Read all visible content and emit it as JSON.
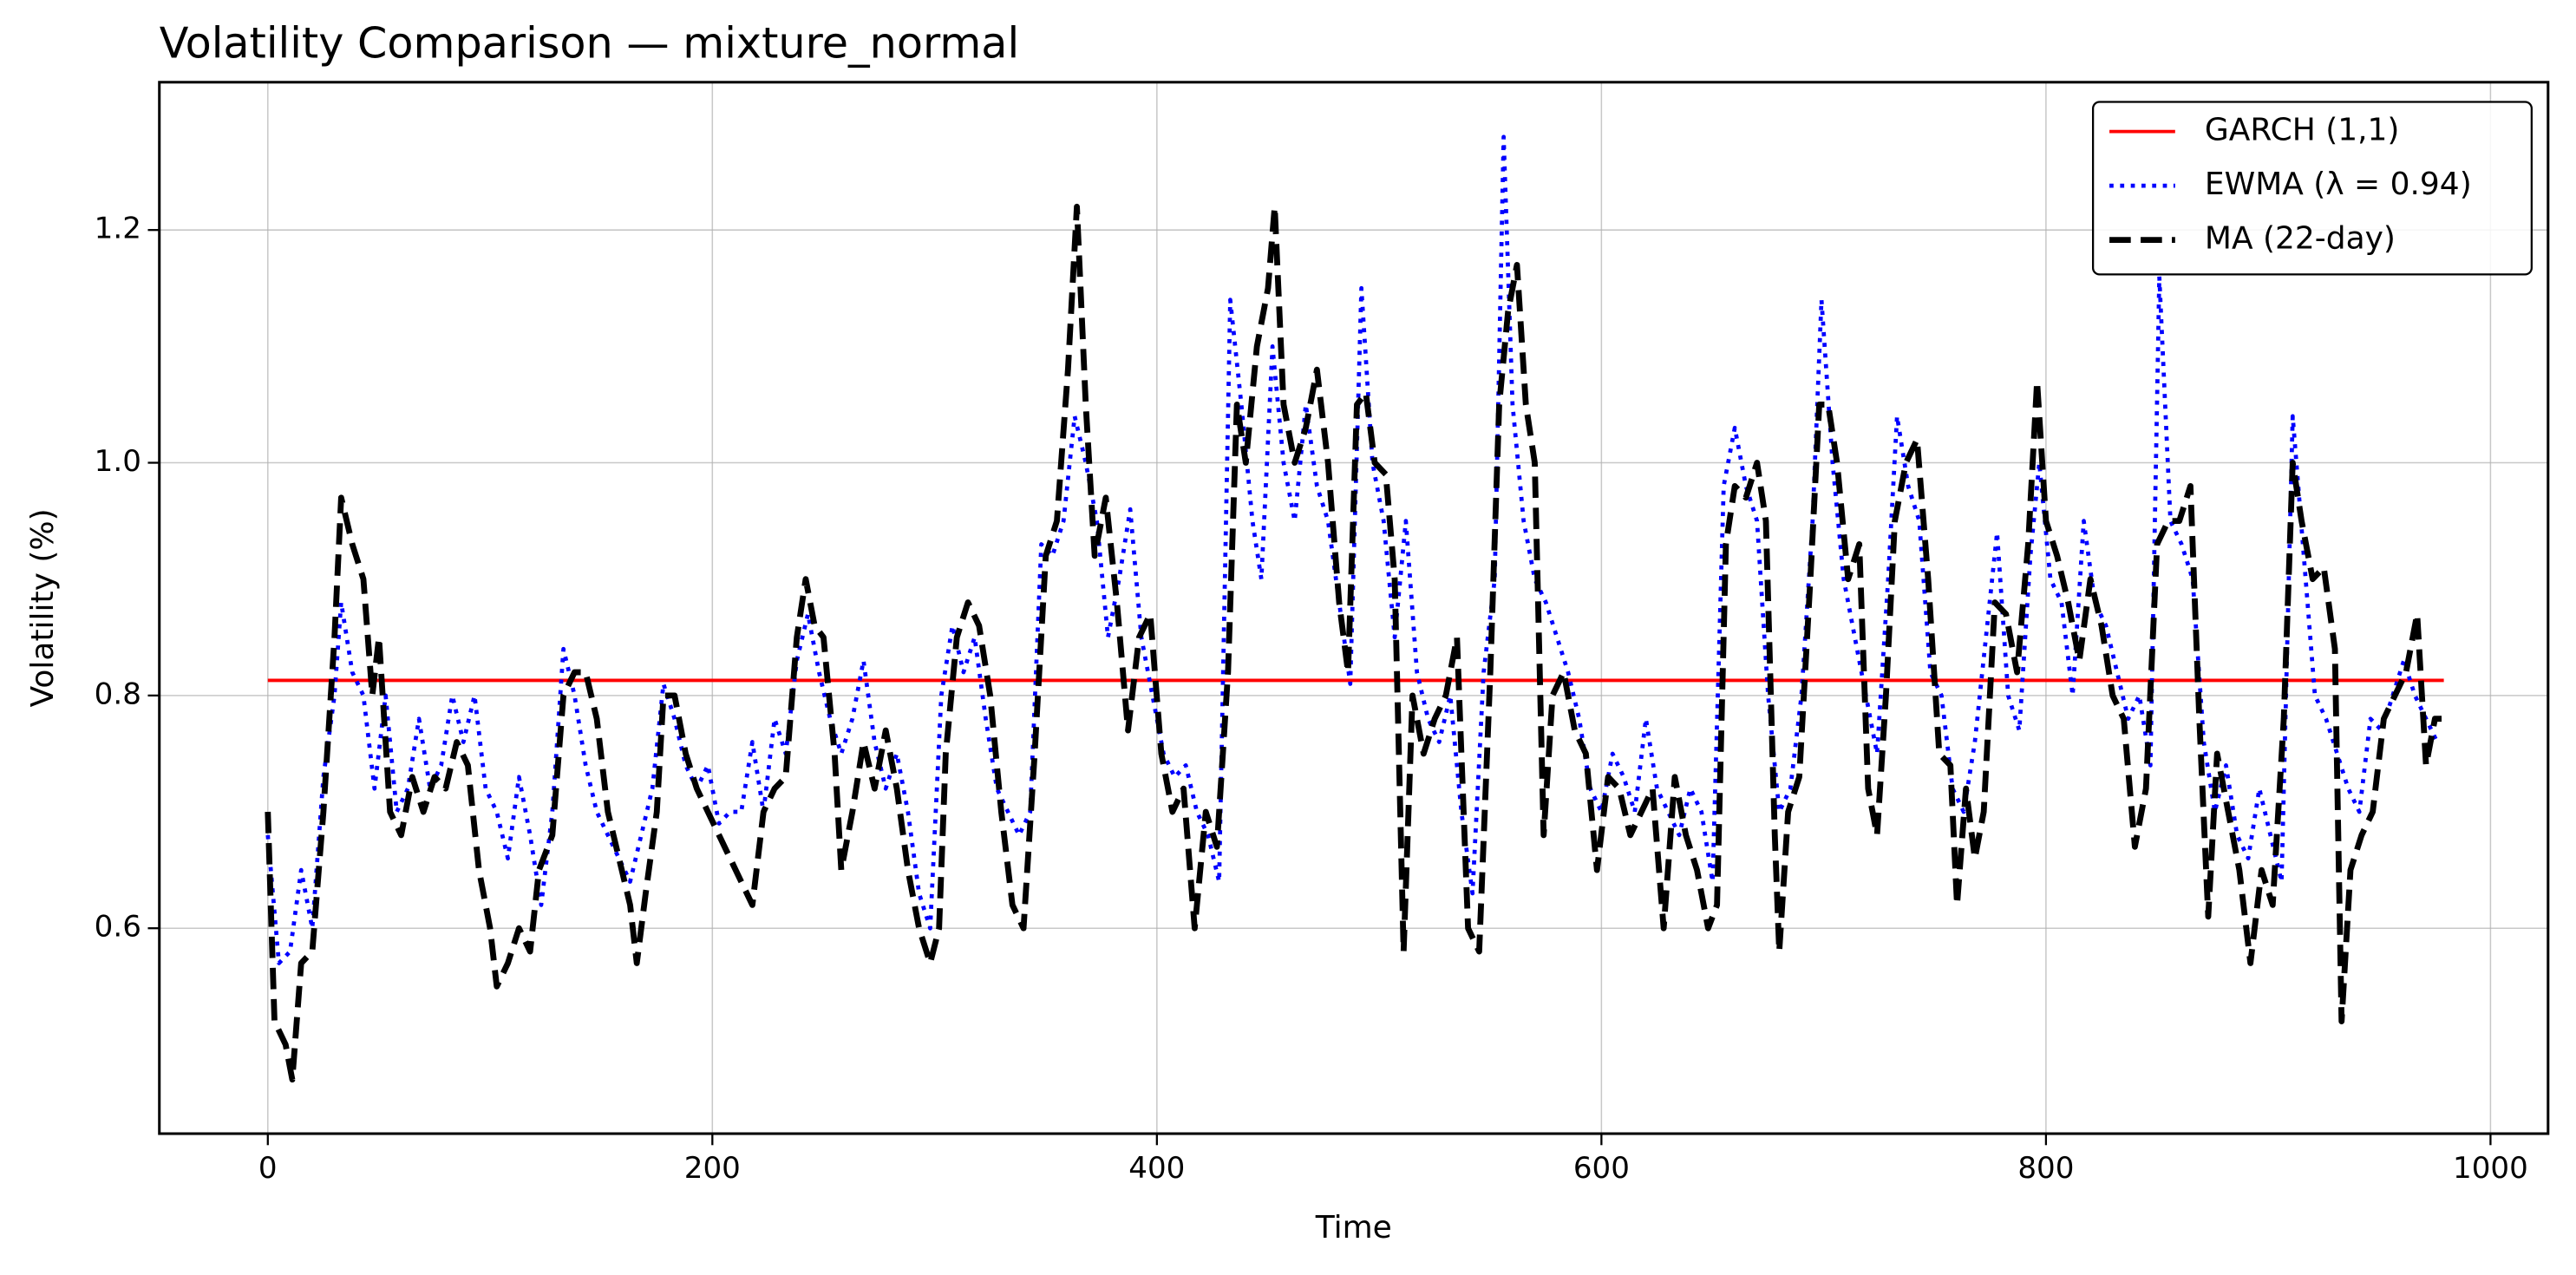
{
  "chart_data": {
    "type": "line",
    "title": "Volatility Comparison — mixture_normal",
    "xlabel": "Time",
    "ylabel": "Volatility (%)",
    "xlim": [
      -48.8,
      1025.9
    ],
    "ylim": [
      0.4235,
      1.327
    ],
    "xticks": [
      0,
      200,
      400,
      600,
      800,
      1000
    ],
    "yticks": [
      0.6,
      0.8,
      {
        "value": 1,
        "label": "1.0"
      },
      1.2
    ],
    "grid": true,
    "legend": "upper right",
    "series": [
      {
        "name": "GARCH (1,1)",
        "color": "#ff0000",
        "linestyle": "solid",
        "x": [
          0,
          979
        ],
        "values": [
          0.813,
          0.813
        ]
      },
      {
        "name": "EWMA (λ = 0.94)",
        "color": "#0000ff",
        "linestyle": "dotted",
        "x": [
          0,
          5,
          10,
          15,
          20,
          25,
          30,
          33,
          38,
          43,
          48,
          53,
          58,
          63,
          68,
          73,
          78,
          83,
          88,
          93,
          98,
          103,
          108,
          113,
          118,
          123,
          128,
          133,
          138,
          143,
          148,
          153,
          158,
          163,
          168,
          173,
          178,
          183,
          188,
          193,
          198,
          203,
          208,
          213,
          218,
          223,
          228,
          233,
          238,
          243,
          248,
          253,
          258,
          263,
          268,
          273,
          278,
          283,
          288,
          293,
          298,
          303,
          308,
          313,
          318,
          323,
          328,
          333,
          338,
          343,
          348,
          353,
          358,
          363,
          368,
          373,
          378,
          383,
          388,
          393,
          398,
          403,
          408,
          413,
          418,
          423,
          428,
          433,
          438,
          443,
          447,
          452,
          457,
          462,
          467,
          472,
          477,
          482,
          487,
          492,
          497,
          502,
          507,
          512,
          517,
          522,
          527,
          532,
          537,
          542,
          547,
          552,
          556,
          560,
          565,
          570,
          575,
          580,
          585,
          590,
          595,
          600,
          605,
          610,
          615,
          620,
          625,
          630,
          635,
          640,
          645,
          650,
          655,
          660,
          665,
          670,
          675,
          680,
          685,
          690,
          695,
          699,
          704,
          709,
          714,
          719,
          724,
          729,
          733,
          738,
          743,
          748,
          753,
          758,
          763,
          768,
          773,
          778,
          783,
          788,
          793,
          797,
          802,
          807,
          812,
          817,
          822,
          827,
          832,
          837,
          842,
          847,
          851,
          856,
          861,
          866,
          871,
          876,
          881,
          886,
          891,
          896,
          901,
          906,
          911,
          916,
          921,
          926,
          931,
          936,
          941,
          946,
          951,
          956,
          961,
          966,
          971,
          976
        ],
        "values": [
          0.68,
          0.57,
          0.58,
          0.65,
          0.6,
          0.73,
          0.8,
          0.88,
          0.82,
          0.8,
          0.72,
          0.8,
          0.7,
          0.72,
          0.78,
          0.72,
          0.74,
          0.8,
          0.76,
          0.8,
          0.72,
          0.7,
          0.66,
          0.73,
          0.68,
          0.62,
          0.7,
          0.84,
          0.8,
          0.74,
          0.7,
          0.68,
          0.66,
          0.64,
          0.68,
          0.72,
          0.81,
          0.78,
          0.74,
          0.72,
          0.74,
          0.69,
          0.7,
          0.7,
          0.76,
          0.7,
          0.78,
          0.75,
          0.83,
          0.87,
          0.82,
          0.78,
          0.75,
          0.78,
          0.83,
          0.76,
          0.72,
          0.75,
          0.7,
          0.63,
          0.6,
          0.8,
          0.86,
          0.82,
          0.85,
          0.78,
          0.72,
          0.7,
          0.68,
          0.7,
          0.93,
          0.92,
          0.95,
          1.04,
          1.0,
          0.95,
          0.85,
          0.9,
          0.96,
          0.85,
          0.8,
          0.75,
          0.73,
          0.74,
          0.7,
          0.68,
          0.64,
          1.14,
          1.05,
          0.95,
          0.9,
          1.1,
          1.0,
          0.95,
          1.05,
          0.98,
          0.95,
          0.88,
          0.81,
          1.15,
          1.0,
          0.95,
          0.85,
          0.95,
          0.82,
          0.78,
          0.76,
          0.8,
          0.7,
          0.63,
          0.82,
          0.9,
          1.28,
          1.05,
          0.95,
          0.9,
          0.88,
          0.85,
          0.82,
          0.78,
          0.72,
          0.7,
          0.75,
          0.73,
          0.7,
          0.78,
          0.72,
          0.7,
          0.68,
          0.72,
          0.7,
          0.64,
          0.98,
          1.03,
          0.98,
          0.95,
          0.8,
          0.7,
          0.72,
          0.8,
          0.95,
          1.14,
          1.0,
          0.9,
          0.85,
          0.8,
          0.75,
          0.9,
          1.04,
          0.98,
          0.95,
          0.82,
          0.8,
          0.72,
          0.7,
          0.76,
          0.85,
          0.94,
          0.8,
          0.77,
          0.92,
          1.0,
          0.9,
          0.88,
          0.8,
          0.95,
          0.88,
          0.86,
          0.82,
          0.78,
          0.8,
          0.74,
          1.16,
          0.95,
          0.93,
          0.9,
          0.76,
          0.7,
          0.74,
          0.68,
          0.66,
          0.72,
          0.68,
          0.64,
          1.04,
          0.92,
          0.8,
          0.78,
          0.75,
          0.72,
          0.7,
          0.78,
          0.77,
          0.8,
          0.83,
          0.8,
          0.78,
          0.76
        ]
      },
      {
        "name": "MA (22-day)",
        "color": "#000000",
        "linestyle": "dashed",
        "x": [
          0,
          3,
          8,
          11,
          15,
          20,
          25,
          30,
          33,
          38,
          43,
          47,
          50,
          55,
          60,
          65,
          70,
          75,
          80,
          85,
          90,
          95,
          100,
          103,
          108,
          113,
          118,
          122,
          128,
          133,
          138,
          143,
          148,
          153,
          158,
          163,
          166,
          170,
          175,
          178,
          183,
          188,
          193,
          198,
          203,
          208,
          213,
          218,
          223,
          228,
          233,
          238,
          242,
          246,
          250,
          255,
          258,
          263,
          268,
          273,
          278,
          283,
          288,
          293,
          298,
          302,
          305,
          310,
          315,
          320,
          325,
          330,
          335,
          340,
          345,
          350,
          355,
          360,
          364,
          368,
          372,
          377,
          382,
          387,
          392,
          397,
          402,
          407,
          412,
          417,
          422,
          427,
          432,
          436,
          440,
          445,
          450,
          453,
          457,
          462,
          467,
          472,
          477,
          482,
          486,
          490,
          494,
          498,
          503,
          507,
          511,
          515,
          520,
          525,
          530,
          535,
          540,
          545,
          550,
          554,
          558,
          562,
          566,
          570,
          574,
          578,
          583,
          588,
          593,
          598,
          603,
          608,
          613,
          618,
          623,
          628,
          633,
          638,
          643,
          648,
          652,
          656,
          660,
          665,
          670,
          674,
          678,
          680,
          684,
          689,
          694,
          698,
          702,
          706,
          711,
          716,
          720,
          724,
          728,
          732,
          737,
          742,
          747,
          752,
          757,
          760,
          764,
          768,
          772,
          777,
          782,
          787,
          792,
          796,
          800,
          805,
          810,
          815,
          820,
          825,
          830,
          835,
          840,
          845,
          850,
          855,
          860,
          865,
          869,
          873,
          877,
          882,
          887,
          892,
          897,
          902,
          907,
          911,
          915,
          920,
          925,
          930,
          933,
          937,
          942,
          947,
          952,
          957,
          962,
          967,
          971,
          975,
          978
        ],
        "values": [
          0.7,
          0.52,
          0.5,
          0.47,
          0.57,
          0.58,
          0.7,
          0.85,
          0.97,
          0.93,
          0.9,
          0.8,
          0.85,
          0.7,
          0.68,
          0.73,
          0.7,
          0.73,
          0.72,
          0.76,
          0.74,
          0.65,
          0.6,
          0.55,
          0.57,
          0.6,
          0.58,
          0.65,
          0.68,
          0.8,
          0.82,
          0.82,
          0.78,
          0.7,
          0.66,
          0.62,
          0.57,
          0.63,
          0.7,
          0.8,
          0.8,
          0.75,
          0.72,
          0.7,
          0.68,
          0.66,
          0.64,
          0.62,
          0.7,
          0.72,
          0.73,
          0.85,
          0.9,
          0.86,
          0.85,
          0.75,
          0.65,
          0.7,
          0.76,
          0.72,
          0.77,
          0.72,
          0.65,
          0.6,
          0.57,
          0.6,
          0.75,
          0.85,
          0.88,
          0.86,
          0.8,
          0.7,
          0.62,
          0.6,
          0.75,
          0.92,
          0.95,
          1.08,
          1.22,
          1.05,
          0.92,
          0.97,
          0.88,
          0.77,
          0.85,
          0.87,
          0.75,
          0.7,
          0.72,
          0.6,
          0.7,
          0.67,
          0.82,
          1.05,
          1.0,
          1.1,
          1.15,
          1.22,
          1.05,
          1.0,
          1.03,
          1.08,
          1.0,
          0.88,
          0.82,
          1.05,
          1.06,
          1.0,
          0.99,
          0.9,
          0.58,
          0.8,
          0.75,
          0.78,
          0.8,
          0.85,
          0.6,
          0.58,
          0.82,
          1.05,
          1.13,
          1.17,
          1.05,
          1.0,
          0.68,
          0.8,
          0.82,
          0.77,
          0.75,
          0.65,
          0.73,
          0.72,
          0.68,
          0.7,
          0.72,
          0.6,
          0.73,
          0.68,
          0.65,
          0.6,
          0.62,
          0.93,
          0.98,
          0.97,
          1.0,
          0.95,
          0.68,
          0.58,
          0.7,
          0.73,
          0.9,
          1.05,
          1.05,
          1.0,
          0.9,
          0.93,
          0.72,
          0.68,
          0.8,
          0.95,
          1.0,
          1.02,
          0.9,
          0.75,
          0.74,
          0.62,
          0.72,
          0.66,
          0.7,
          0.88,
          0.87,
          0.82,
          0.93,
          1.07,
          0.95,
          0.92,
          0.88,
          0.83,
          0.9,
          0.86,
          0.8,
          0.78,
          0.67,
          0.72,
          0.93,
          0.95,
          0.95,
          0.98,
          0.78,
          0.61,
          0.75,
          0.7,
          0.65,
          0.57,
          0.65,
          0.62,
          0.78,
          1.0,
          0.95,
          0.9,
          0.91,
          0.84,
          0.52,
          0.65,
          0.68,
          0.7,
          0.78,
          0.8,
          0.82,
          0.87,
          0.74,
          0.78,
          0.78
        ]
      }
    ]
  }
}
